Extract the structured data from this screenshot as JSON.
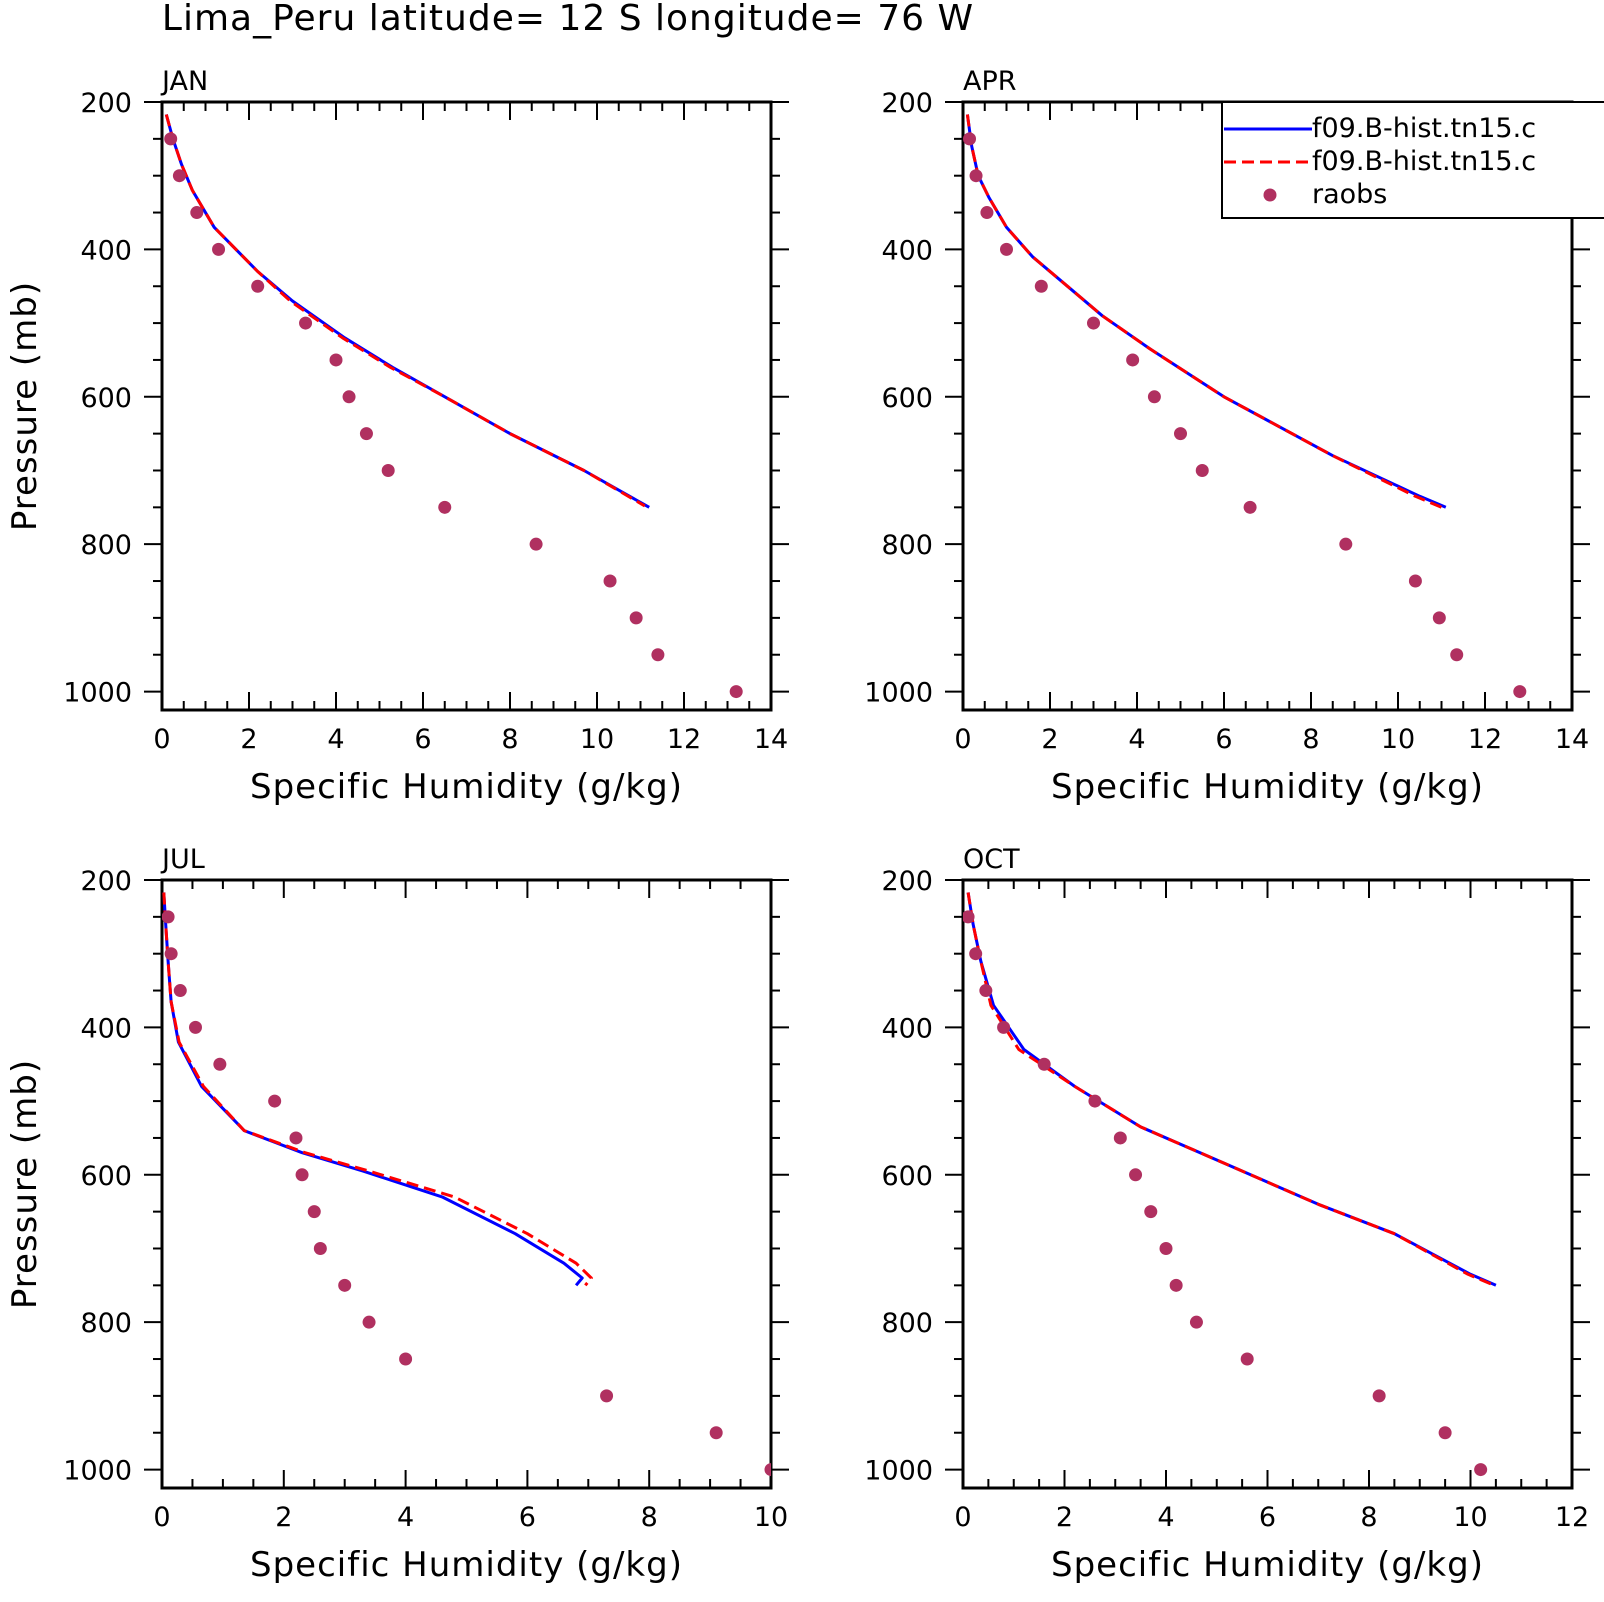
{
  "title": "Lima_Peru  latitude= 12 S longitude= 76 W",
  "legend": {
    "placement": "top-right of APR panel (clipped at image edge)",
    "entries": [
      {
        "label": "f09.B-hist.tn15.c",
        "color": "#0000ff",
        "style": "solid-line"
      },
      {
        "label": "f09.B-hist.tn15.c",
        "color": "#ff0000",
        "style": "dashed-line"
      },
      {
        "label": "raobs",
        "color": "#b03060",
        "style": "dot"
      }
    ]
  },
  "colors": {
    "model_a": "#0000ff",
    "model_b": "#ff0000",
    "raobs": "#b03060"
  },
  "chart_data": [
    {
      "type": "line",
      "panel": "JAN",
      "xlabel": "Specific Humidity (g/kg)",
      "ylabel": "Pressure (mb)",
      "xlim": [
        0,
        14
      ],
      "ylim": [
        200,
        1025
      ],
      "y_inverted": true,
      "xticks": [
        0,
        2,
        4,
        6,
        8,
        10,
        12,
        14
      ],
      "yticks": [
        200,
        400,
        600,
        800,
        1000
      ],
      "series": [
        {
          "color": "#0000ff",
          "style": "solid",
          "x": [
            0.1,
            0.25,
            0.45,
            0.7,
            1.2,
            2.2,
            3.0,
            4.2,
            5.3,
            6.5,
            8.0,
            9.7,
            11.2
          ],
          "y": [
            217,
            250,
            285,
            320,
            370,
            430,
            470,
            520,
            560,
            600,
            650,
            700,
            750
          ]
        },
        {
          "color": "#ff0000",
          "style": "dashed",
          "x": [
            0.1,
            0.25,
            0.45,
            0.7,
            1.2,
            2.2,
            2.95,
            4.15,
            5.25,
            6.5,
            8.0,
            9.7,
            11.1
          ],
          "y": [
            217,
            250,
            285,
            320,
            370,
            430,
            470,
            520,
            560,
            600,
            650,
            700,
            748
          ]
        },
        {
          "color": "#b03060",
          "style": "dots",
          "x": [
            0.2,
            0.4,
            0.8,
            1.3,
            2.2,
            3.3,
            4.0,
            4.3,
            4.7,
            5.2,
            6.5,
            8.6,
            10.3,
            10.9,
            11.4,
            13.2
          ],
          "y": [
            250,
            300,
            350,
            400,
            450,
            500,
            550,
            600,
            650,
            700,
            750,
            800,
            850,
            900,
            950,
            1000
          ]
        }
      ]
    },
    {
      "type": "line",
      "panel": "APR",
      "xlabel": "Specific Humidity (g/kg)",
      "ylabel": "",
      "xlim": [
        0,
        14
      ],
      "ylim": [
        200,
        1025
      ],
      "y_inverted": true,
      "xticks": [
        0,
        2,
        4,
        6,
        8,
        10,
        12,
        14
      ],
      "yticks": [
        200,
        400,
        600,
        800,
        1000
      ],
      "series": [
        {
          "color": "#0000ff",
          "style": "solid",
          "x": [
            0.1,
            0.2,
            0.35,
            0.6,
            1.0,
            1.6,
            2.4,
            3.2,
            4.3,
            6.0,
            8.5,
            10.5,
            11.1
          ],
          "y": [
            217,
            260,
            300,
            330,
            370,
            410,
            450,
            490,
            535,
            600,
            680,
            735,
            750
          ]
        },
        {
          "color": "#ff0000",
          "style": "dashed",
          "x": [
            0.1,
            0.2,
            0.35,
            0.6,
            1.0,
            1.6,
            2.4,
            3.2,
            4.3,
            6.0,
            8.5,
            10.4,
            11.0
          ],
          "y": [
            217,
            260,
            300,
            330,
            370,
            410,
            450,
            490,
            535,
            600,
            680,
            735,
            750
          ]
        },
        {
          "color": "#b03060",
          "style": "dots",
          "x": [
            0.15,
            0.3,
            0.55,
            1.0,
            1.8,
            3.0,
            3.9,
            4.4,
            5.0,
            5.5,
            6.6,
            8.8,
            10.4,
            10.95,
            11.35,
            12.8
          ],
          "y": [
            250,
            300,
            350,
            400,
            450,
            500,
            550,
            600,
            650,
            700,
            750,
            800,
            850,
            900,
            950,
            1000
          ]
        }
      ]
    },
    {
      "type": "line",
      "panel": "JUL",
      "xlabel": "Specific Humidity (g/kg)",
      "ylabel": "Pressure (mb)",
      "xlim": [
        0,
        10
      ],
      "ylim": [
        200,
        1025
      ],
      "y_inverted": true,
      "xticks": [
        0,
        2,
        4,
        6,
        8,
        10
      ],
      "yticks": [
        200,
        400,
        600,
        800,
        1000
      ],
      "series": [
        {
          "color": "#0000ff",
          "style": "solid",
          "x": [
            0.03,
            0.06,
            0.1,
            0.15,
            0.27,
            0.65,
            1.35,
            2.3,
            3.3,
            4.6,
            5.8,
            6.6,
            6.9,
            6.8
          ],
          "y": [
            217,
            260,
            310,
            365,
            420,
            480,
            540,
            570,
            595,
            630,
            680,
            720,
            740,
            750
          ]
        },
        {
          "color": "#ff0000",
          "style": "dashed",
          "x": [
            0.03,
            0.06,
            0.1,
            0.15,
            0.28,
            0.68,
            1.35,
            2.35,
            3.4,
            4.8,
            6.0,
            6.8,
            7.05,
            6.95
          ],
          "y": [
            217,
            260,
            310,
            365,
            420,
            480,
            540,
            570,
            595,
            630,
            680,
            720,
            740,
            750
          ]
        },
        {
          "color": "#b03060",
          "style": "dots",
          "x": [
            0.1,
            0.15,
            0.3,
            0.55,
            0.95,
            1.85,
            2.2,
            2.3,
            2.5,
            2.6,
            3.0,
            3.4,
            4.0,
            7.3,
            9.1,
            10.0
          ],
          "y": [
            250,
            300,
            350,
            400,
            450,
            500,
            550,
            600,
            650,
            700,
            750,
            800,
            850,
            900,
            950,
            1000
          ]
        }
      ]
    },
    {
      "type": "line",
      "panel": "OCT",
      "xlabel": "Specific Humidity (g/kg)",
      "ylabel": "",
      "xlim": [
        0,
        12
      ],
      "ylim": [
        200,
        1025
      ],
      "y_inverted": true,
      "xticks": [
        0,
        2,
        4,
        6,
        8,
        10,
        12
      ],
      "yticks": [
        200,
        400,
        600,
        800,
        1000
      ],
      "series": [
        {
          "color": "#0000ff",
          "style": "solid",
          "x": [
            0.1,
            0.2,
            0.35,
            0.6,
            1.2,
            2.2,
            3.5,
            5.0,
            7.0,
            8.5,
            10.0,
            10.5
          ],
          "y": [
            217,
            260,
            310,
            370,
            430,
            480,
            535,
            580,
            640,
            680,
            735,
            750
          ]
        },
        {
          "color": "#ff0000",
          "style": "dashed",
          "x": [
            0.1,
            0.2,
            0.35,
            0.55,
            1.1,
            2.2,
            3.5,
            5.0,
            7.0,
            8.5,
            9.95,
            10.4
          ],
          "y": [
            217,
            260,
            310,
            370,
            430,
            480,
            535,
            580,
            640,
            680,
            735,
            748
          ]
        },
        {
          "color": "#b03060",
          "style": "dots",
          "x": [
            0.1,
            0.25,
            0.45,
            0.8,
            1.6,
            2.6,
            3.1,
            3.4,
            3.7,
            4.0,
            4.2,
            4.6,
            5.6,
            8.2,
            9.5,
            10.2
          ],
          "y": [
            250,
            300,
            350,
            400,
            450,
            500,
            550,
            600,
            650,
            700,
            750,
            800,
            850,
            900,
            950,
            1000
          ]
        }
      ]
    }
  ]
}
